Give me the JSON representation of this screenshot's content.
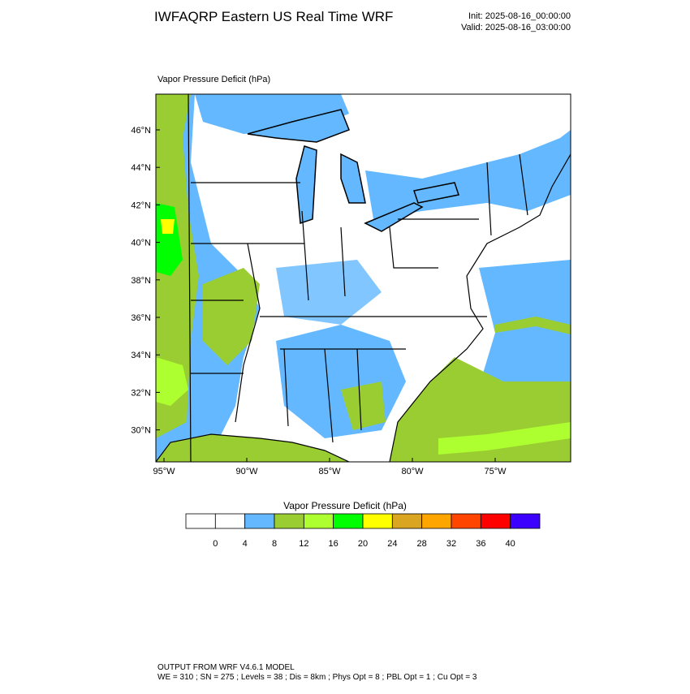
{
  "header": {
    "title": "IWFAQRP Eastern US Real Time WRF",
    "init": "Init: 2025-08-16_00:00:00",
    "valid": "Valid: 2025-08-16_03:00:00"
  },
  "map": {
    "label": "Vapor Pressure Deficit   (hPa)",
    "lat_ticks": [
      {
        "value": 46,
        "label": "46°N"
      },
      {
        "value": 44,
        "label": "44°N"
      },
      {
        "value": 42,
        "label": "42°N"
      },
      {
        "value": 40,
        "label": "40°N"
      },
      {
        "value": 38,
        "label": "38°N"
      },
      {
        "value": 36,
        "label": "36°N"
      },
      {
        "value": 34,
        "label": "34°N"
      },
      {
        "value": 32,
        "label": "32°N"
      },
      {
        "value": 30,
        "label": "30°N"
      }
    ],
    "lon_ticks": [
      {
        "value": -95,
        "label": "95°W"
      },
      {
        "value": -90,
        "label": "90°W"
      },
      {
        "value": -85,
        "label": "85°W"
      },
      {
        "value": -80,
        "label": "80°W"
      },
      {
        "value": -75,
        "label": "75°W"
      }
    ]
  },
  "colorbar": {
    "title": "Vapor Pressure Deficit  (hPa)",
    "colors": [
      "#ffffff",
      "#ffffff",
      "#63b8ff",
      "#9acd32",
      "#adff2f",
      "#00ff00",
      "#ffff00",
      "#daa520",
      "#ffa500",
      "#ff4500",
      "#ff0000",
      "#3c00ff"
    ],
    "levels": [
      0,
      4,
      8,
      12,
      16,
      20,
      24,
      28,
      32,
      36,
      40
    ]
  },
  "footer": {
    "line1": "OUTPUT FROM WRF V4.6.1 MODEL",
    "line2": "WE = 310 ; SN = 275 ; Levels = 38 ; Dis = 8km ; Phys Opt = 8 ; PBL Opt = 1 ; Cu Opt = 3"
  }
}
